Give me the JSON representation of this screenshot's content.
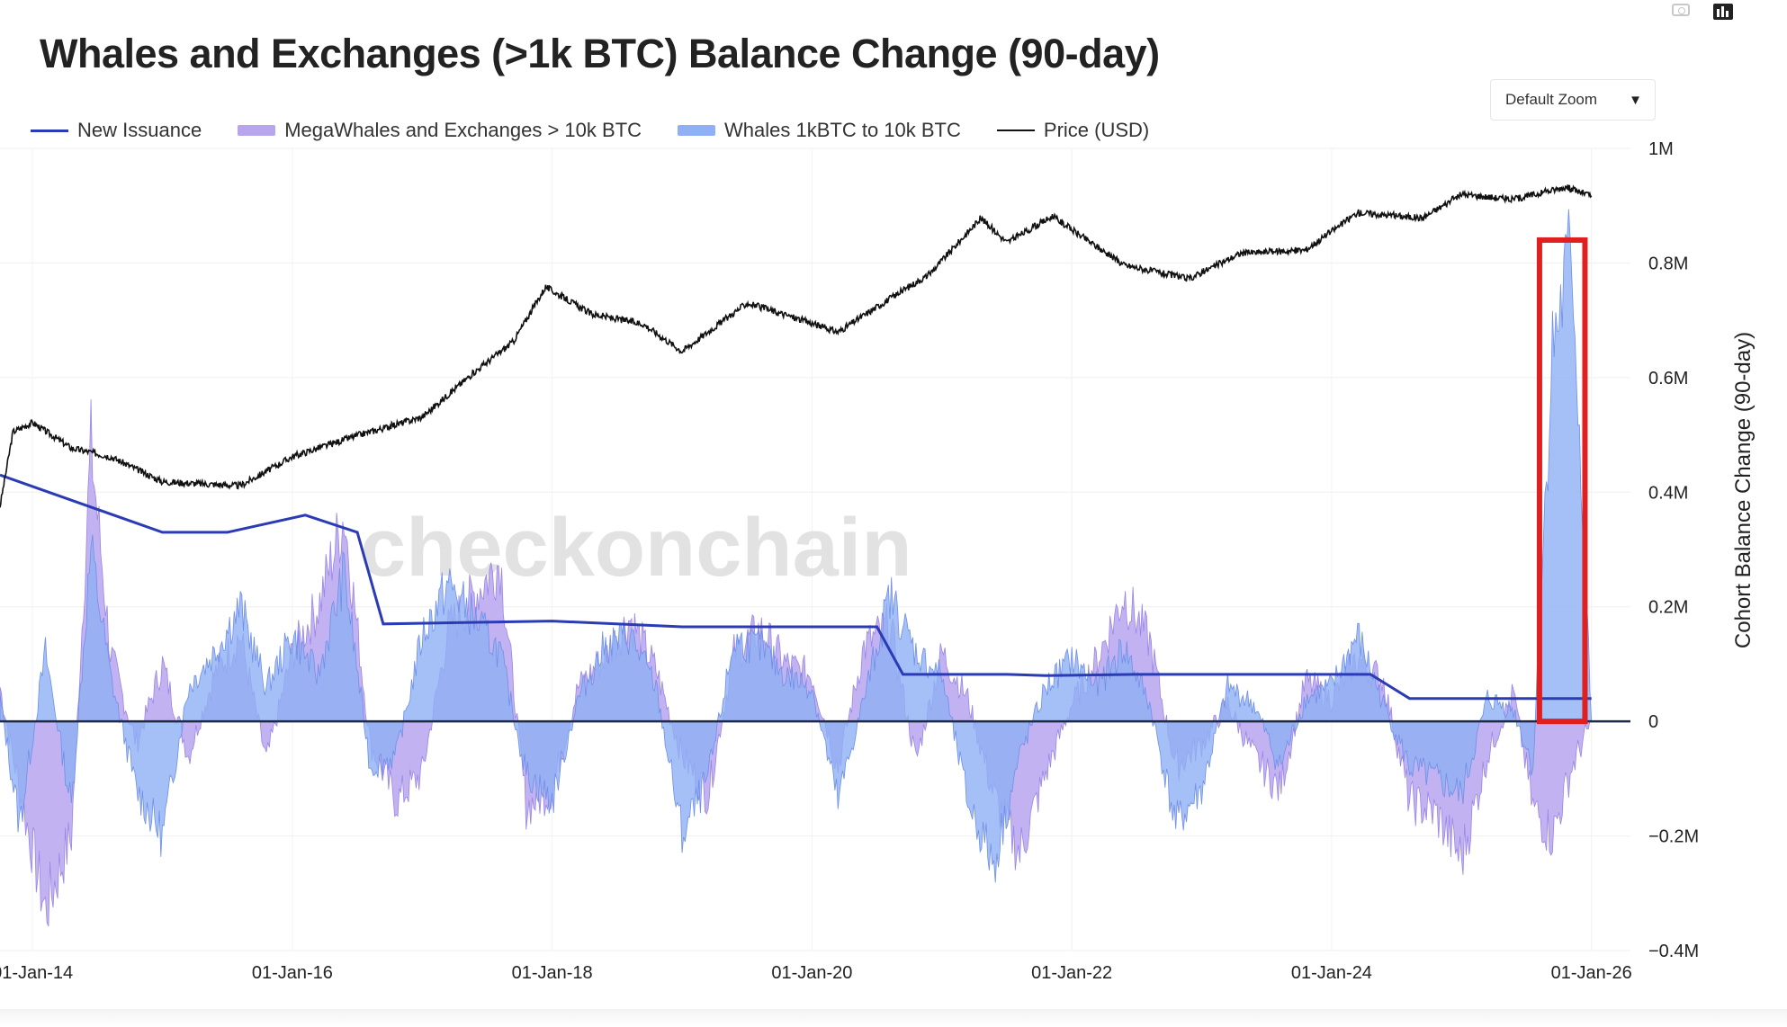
{
  "title": "Whales and Exchanges (>1k BTC) Balance Change (90-day)",
  "zoom": {
    "label": "Default Zoom",
    "arrow": "▼"
  },
  "watermark": "checkonchain",
  "colors": {
    "issuance": "#2b3bb5",
    "mega": "#b9a4ee",
    "whales": "#8fb0f4",
    "price": "#111111",
    "highlight": "#e02020",
    "zero": "#1f2a44"
  },
  "icons": [
    "camera-icon",
    "bar-chart-icon"
  ],
  "chart_data": {
    "type": "area",
    "title": "Whales and Exchanges (>1k BTC) Balance Change (90-day)",
    "y_right_label": "Cohort Balance Change (90-day)",
    "y_ticks": [
      "1M",
      "0.8M",
      "0.6M",
      "0.4M",
      "0.2M",
      "0",
      "−0.2M",
      "−0.4M"
    ],
    "x_ticks": [
      "01-Jan-14",
      "01-Jan-16",
      "01-Jan-18",
      "01-Jan-20",
      "01-Jan-22",
      "01-Jan-24",
      "01-Jan-26"
    ],
    "x_tick_years": [
      2014,
      2016,
      2018,
      2020,
      2022,
      2024,
      2026
    ],
    "xlim": [
      2013.75,
      2026.3
    ],
    "ylim": [
      -400000,
      1000000
    ],
    "legend_placement": "top",
    "grid": true,
    "series": [
      {
        "name": "New Issuance",
        "kind": "line",
        "x": [
          2013.75,
          2014.0,
          2014.5,
          2015.0,
          2015.5,
          2016.1,
          2016.5,
          2016.7,
          2018.0,
          2019.0,
          2020.0,
          2020.5,
          2020.7,
          2021.5,
          2021.8,
          2022.5,
          2023.5,
          2024.3,
          2024.6,
          2026.0
        ],
        "y": [
          430000,
          410000,
          370000,
          330000,
          330000,
          360000,
          330000,
          170000,
          175000,
          165000,
          165000,
          165000,
          82000,
          82000,
          80000,
          82000,
          82000,
          82000,
          40000,
          40000
        ]
      },
      {
        "name": "MegaWhales and Exchanges > 10k BTC",
        "kind": "area",
        "x": [
          2013.75,
          2013.9,
          2014.1,
          2014.3,
          2014.45,
          2014.6,
          2014.8,
          2015.0,
          2015.2,
          2015.4,
          2015.6,
          2015.8,
          2016.0,
          2016.2,
          2016.4,
          2016.6,
          2016.8,
          2017.0,
          2017.2,
          2017.4,
          2017.6,
          2017.8,
          2018.0,
          2018.2,
          2018.4,
          2018.6,
          2018.8,
          2019.0,
          2019.2,
          2019.4,
          2019.6,
          2019.8,
          2020.0,
          2020.2,
          2020.4,
          2020.6,
          2020.8,
          2021.0,
          2021.2,
          2021.4,
          2021.6,
          2021.8,
          2022.0,
          2022.2,
          2022.4,
          2022.6,
          2022.8,
          2023.0,
          2023.2,
          2023.4,
          2023.6,
          2023.8,
          2024.0,
          2024.2,
          2024.4,
          2024.6,
          2024.8,
          2025.0,
          2025.2,
          2025.4,
          2025.55,
          2025.7,
          2025.85,
          2026.0
        ],
        "y": [
          60000,
          -120000,
          -330000,
          -200000,
          480000,
          120000,
          -40000,
          100000,
          -60000,
          80000,
          150000,
          -70000,
          120000,
          200000,
          360000,
          -40000,
          -140000,
          -90000,
          160000,
          220000,
          280000,
          -150000,
          -120000,
          60000,
          110000,
          180000,
          90000,
          -60000,
          -130000,
          120000,
          160000,
          100000,
          80000,
          -80000,
          130000,
          170000,
          -70000,
          120000,
          40000,
          -130000,
          -230000,
          -90000,
          30000,
          110000,
          220000,
          140000,
          -80000,
          -40000,
          30000,
          -60000,
          -120000,
          70000,
          40000,
          110000,
          70000,
          -140000,
          -160000,
          -240000,
          -60000,
          50000,
          -150000,
          -200000,
          -80000,
          0
        ]
      },
      {
        "name": "Whales 1kBTC to 10k BTC",
        "kind": "area",
        "x": [
          2013.75,
          2013.9,
          2014.1,
          2014.3,
          2014.45,
          2014.6,
          2014.8,
          2015.0,
          2015.2,
          2015.4,
          2015.6,
          2015.8,
          2016.0,
          2016.2,
          2016.4,
          2016.6,
          2016.8,
          2017.0,
          2017.2,
          2017.4,
          2017.6,
          2017.8,
          2018.0,
          2018.2,
          2018.4,
          2018.6,
          2018.8,
          2019.0,
          2019.2,
          2019.4,
          2019.6,
          2019.8,
          2020.0,
          2020.2,
          2020.4,
          2020.6,
          2020.8,
          2021.0,
          2021.2,
          2021.4,
          2021.6,
          2021.8,
          2022.0,
          2022.2,
          2022.4,
          2022.6,
          2022.8,
          2023.0,
          2023.2,
          2023.4,
          2023.6,
          2023.8,
          2024.0,
          2024.2,
          2024.4,
          2024.6,
          2024.8,
          2025.0,
          2025.2,
          2025.4,
          2025.55,
          2025.7,
          2025.85,
          2026.0
        ],
        "y": [
          40000,
          -180000,
          120000,
          -150000,
          300000,
          80000,
          -120000,
          -200000,
          60000,
          120000,
          200000,
          60000,
          150000,
          80000,
          260000,
          -80000,
          -60000,
          150000,
          240000,
          180000,
          120000,
          -90000,
          -140000,
          40000,
          130000,
          150000,
          60000,
          -200000,
          -100000,
          140000,
          130000,
          80000,
          60000,
          -140000,
          40000,
          220000,
          120000,
          80000,
          -140000,
          -250000,
          -60000,
          60000,
          110000,
          60000,
          130000,
          30000,
          -180000,
          -120000,
          60000,
          30000,
          -80000,
          40000,
          60000,
          150000,
          30000,
          -80000,
          -100000,
          -130000,
          40000,
          20000,
          -80000,
          650000,
          820000,
          0
        ]
      },
      {
        "name": "Price (USD)",
        "kind": "line",
        "scale": "log",
        "x": [
          2013.75,
          2013.85,
          2014.0,
          2014.3,
          2014.6,
          2015.0,
          2015.3,
          2015.6,
          2016.0,
          2016.5,
          2017.0,
          2017.4,
          2017.7,
          2017.95,
          2018.3,
          2018.7,
          2019.0,
          2019.5,
          2019.9,
          2020.2,
          2020.6,
          2020.9,
          2021.3,
          2021.5,
          2021.85,
          2022.4,
          2022.9,
          2023.3,
          2023.8,
          2024.2,
          2024.7,
          2025.0,
          2025.4,
          2025.8,
          2026.0
        ],
        "y": [
          150,
          700,
          850,
          500,
          420,
          250,
          240,
          230,
          420,
          650,
          950,
          2400,
          4500,
          14000,
          8000,
          6500,
          3700,
          10000,
          7200,
          5500,
          11000,
          18000,
          58000,
          35000,
          60000,
          22000,
          16500,
          28000,
          30000,
          65000,
          58000,
          95000,
          85000,
          110000,
          92000
        ]
      }
    ],
    "highlight_box": {
      "x": [
        2025.6,
        2025.95
      ],
      "y": [
        0,
        840000
      ]
    }
  }
}
